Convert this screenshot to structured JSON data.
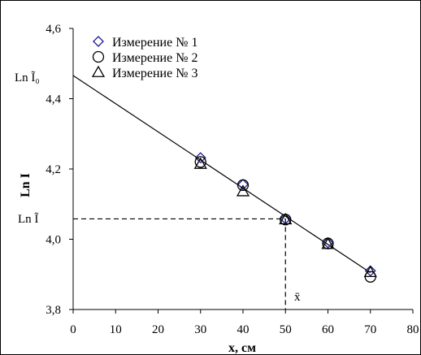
{
  "chart_data": {
    "type": "scatter",
    "title": "",
    "xlabel": "x, см",
    "ylabel": "Ln I",
    "xlim": [
      0,
      80
    ],
    "ylim": [
      3.8,
      4.6
    ],
    "x_ticks": [
      0,
      10,
      20,
      30,
      40,
      50,
      60,
      70,
      80
    ],
    "x_tick_labels": [
      "0",
      "10",
      "20",
      "30",
      "40",
      "50",
      "60",
      "70",
      "80"
    ],
    "y_ticks": [
      3.8,
      4.0,
      4.2,
      4.4,
      4.6
    ],
    "y_tick_labels": [
      "3,8",
      "4,0",
      "4,2",
      "4,4",
      "4,6"
    ],
    "grid": false,
    "legend_position": "top-left",
    "series": [
      {
        "name": "Измерение № 1",
        "marker": "diamond",
        "color": "#1c1c8c",
        "x": [
          30,
          40,
          50,
          60,
          70
        ],
        "y": [
          4.232,
          4.156,
          4.058,
          3.99,
          3.91
        ]
      },
      {
        "name": "Измерение № 2",
        "marker": "circle",
        "color": "#000000",
        "x": [
          30,
          40,
          50,
          60,
          70
        ],
        "y": [
          4.22,
          4.154,
          4.056,
          3.988,
          3.893
        ]
      },
      {
        "name": "Измерение № 3",
        "marker": "triangle",
        "color": "#000000",
        "x": [
          30,
          40,
          50,
          60,
          70
        ],
        "y": [
          4.214,
          4.136,
          4.056,
          3.986,
          3.906
        ]
      }
    ],
    "fit_line": {
      "x": [
        0,
        70
      ],
      "y": [
        4.466,
        3.905
      ]
    },
    "annotations": {
      "intercept": {
        "label": "Ln Ĩ₀",
        "y": 4.466
      },
      "mean_point": {
        "x_label": "x̄",
        "y_label": "Ln Ĩ",
        "x": 50,
        "y": 4.058
      }
    }
  }
}
